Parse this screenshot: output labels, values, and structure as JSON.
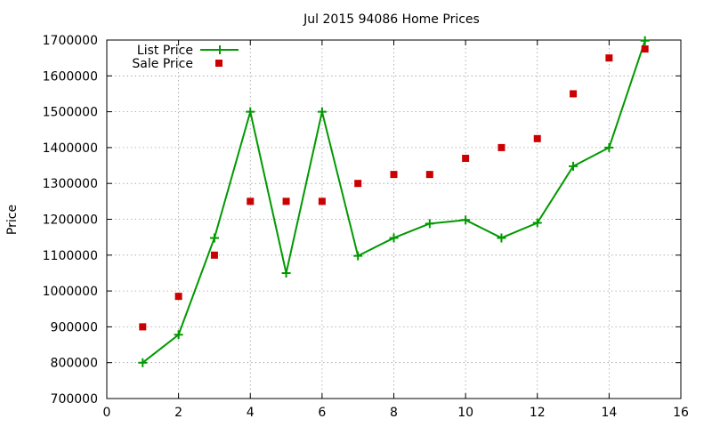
{
  "chart_data": {
    "type": "line",
    "title": "Jul 2015 94086 Home Prices",
    "xlabel": "",
    "ylabel": "Price",
    "xlim": [
      0,
      16
    ],
    "ylim": [
      700000,
      1700000
    ],
    "xticks": [
      "0",
      "2",
      "4",
      "6",
      "8",
      "10",
      "12",
      "14",
      "16"
    ],
    "yticks": [
      "700000",
      "800000",
      "900000",
      "1000000",
      "1100000",
      "1200000",
      "1300000",
      "1400000",
      "1500000",
      "1600000",
      "1700000"
    ],
    "grid": true,
    "legend_position": "top-left",
    "series": [
      {
        "name": "List Price",
        "kind": "line-points",
        "color": "#009900",
        "x": [
          1,
          2,
          3,
          4,
          5,
          6,
          7,
          8,
          9,
          10,
          11,
          12,
          13,
          14,
          15
        ],
        "y": [
          800000,
          878000,
          1148000,
          1500000,
          1050000,
          1500000,
          1098000,
          1148000,
          1188000,
          1198000,
          1148000,
          1190000,
          1348000,
          1400000,
          1698000
        ]
      },
      {
        "name": "Sale Price",
        "kind": "points",
        "color": "#cc0000",
        "x": [
          1,
          2,
          3,
          4,
          5,
          6,
          7,
          8,
          9,
          10,
          11,
          12,
          13,
          14,
          15
        ],
        "y": [
          900000,
          985000,
          1100000,
          1250000,
          1250000,
          1250000,
          1300000,
          1325000,
          1325000,
          1370000,
          1400000,
          1425000,
          1550000,
          1650000,
          1675000
        ]
      }
    ]
  }
}
